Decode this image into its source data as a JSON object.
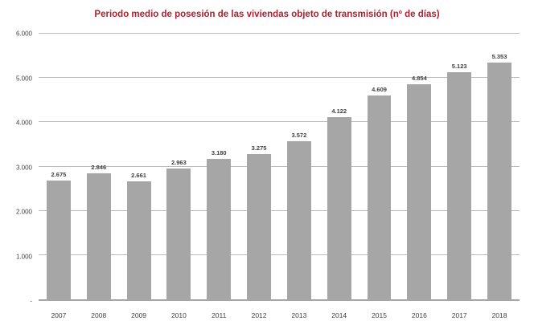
{
  "title": "Periodo medio de posesión de las viviendas objeto de transmisión (nº de días)",
  "colors": {
    "title": "#B0202F",
    "bar": "#A6A6A6",
    "gridline": "#A6A6A6",
    "axis_text": "#404040"
  },
  "chart_data": {
    "type": "bar",
    "title": "Periodo medio de posesión de las viviendas objeto de transmisión (nº de días)",
    "categories": [
      "2007",
      "2008",
      "2009",
      "2010",
      "2011",
      "2012",
      "2013",
      "2014",
      "2015",
      "2016",
      "2017",
      "2018"
    ],
    "values": [
      2675,
      2846,
      2661,
      2963,
      3180,
      3275,
      3572,
      4122,
      4609,
      4854,
      5123,
      5353
    ],
    "value_labels": [
      "2.675",
      "2.846",
      "2.661",
      "2.963",
      "3.180",
      "3.275",
      "3.572",
      "4.122",
      "4.609",
      "4.854",
      "5.123",
      "5.353"
    ],
    "xlabel": "",
    "ylabel": "",
    "ylim": [
      0,
      6000
    ],
    "y_ticks": [
      {
        "value": 0,
        "label": "-"
      },
      {
        "value": 1000,
        "label": "1.000"
      },
      {
        "value": 2000,
        "label": "2.000"
      },
      {
        "value": 3000,
        "label": "3.000"
      },
      {
        "value": 4000,
        "label": "4.000"
      },
      {
        "value": 5000,
        "label": "5.000"
      },
      {
        "value": 6000,
        "label": "6.000"
      }
    ],
    "grid": true,
    "legend": false,
    "series_color": "#A6A6A6"
  }
}
